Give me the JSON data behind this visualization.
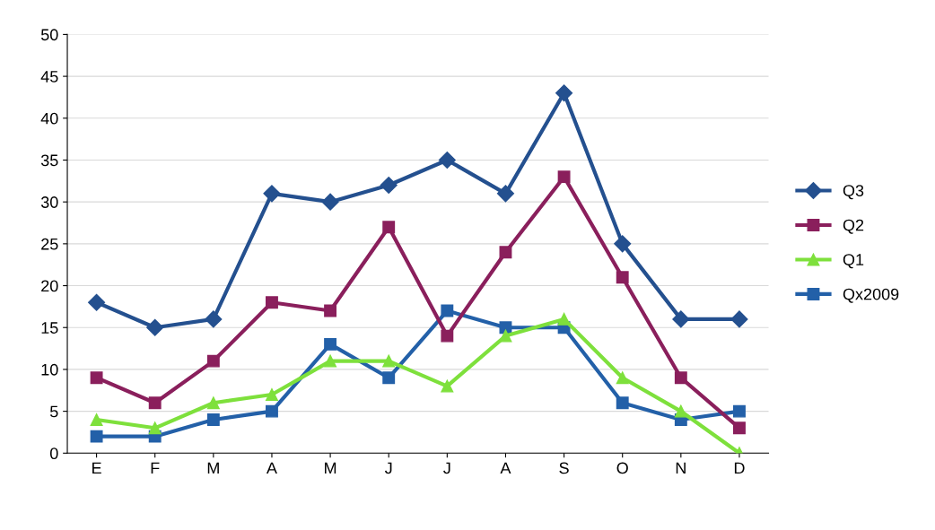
{
  "chart_data": {
    "type": "line",
    "categories": [
      "E",
      "F",
      "M",
      "A",
      "M",
      "J",
      "J",
      "A",
      "S",
      "O",
      "N",
      "D"
    ],
    "series": [
      {
        "name": "Q3",
        "color": "#24508f",
        "marker": "diamond",
        "values": [
          18,
          15,
          16,
          31,
          30,
          32,
          35,
          31,
          43,
          25,
          16,
          16
        ]
      },
      {
        "name": "Q2",
        "color": "#8a1f5c",
        "marker": "square",
        "values": [
          9,
          6,
          11,
          18,
          17,
          27,
          14,
          24,
          33,
          21,
          9,
          3
        ]
      },
      {
        "name": "Q1",
        "color": "#7ee03c",
        "marker": "triangle",
        "values": [
          4,
          3,
          6,
          7,
          11,
          11,
          8,
          14,
          16,
          9,
          5,
          0
        ]
      },
      {
        "name": "Qx2009",
        "color": "#2360a8",
        "marker": "square",
        "values": [
          2,
          2,
          4,
          5,
          13,
          9,
          17,
          15,
          15,
          6,
          4,
          5
        ]
      }
    ],
    "ylim": [
      0,
      50
    ],
    "yticks": [
      0,
      5,
      10,
      15,
      20,
      25,
      30,
      35,
      40,
      45,
      50
    ],
    "grid": "y",
    "legend": "right",
    "line_style": "solid"
  }
}
